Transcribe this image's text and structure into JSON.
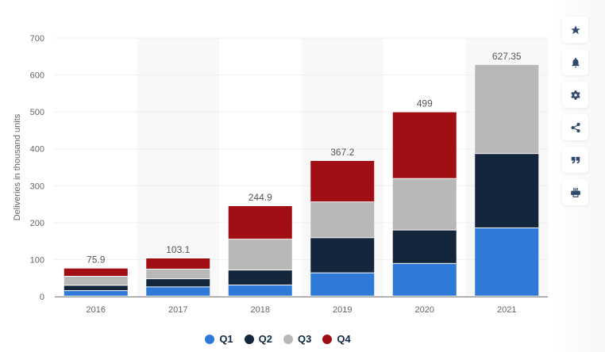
{
  "chart_data": {
    "type": "bar",
    "stacked": true,
    "title": "",
    "xlabel": "",
    "ylabel": "Deliveries in thousand units",
    "ylim": [
      0,
      700
    ],
    "yticks": [
      0,
      100,
      200,
      300,
      400,
      500,
      600,
      700
    ],
    "grid": true,
    "legend_position": "bottom-center",
    "categories": [
      "2016",
      "2017",
      "2018",
      "2019",
      "2020",
      "2021"
    ],
    "series": [
      {
        "name": "Q1",
        "color": "#2f7ad9",
        "values": [
          14.82,
          25.0,
          29.98,
          63.0,
          88.4,
          184.8
        ]
      },
      {
        "name": "Q2",
        "color": "#14263c",
        "values": [
          14.37,
          22.0,
          40.74,
          95.2,
          90.65,
          201.25
        ]
      },
      {
        "name": "Q3",
        "color": "#b8b8b8",
        "values": [
          24.5,
          26.15,
          83.5,
          97.0,
          139.3,
          241.3
        ]
      },
      {
        "name": "Q4",
        "color": "#a10f15",
        "values": [
          22.2,
          29.95,
          90.7,
          112.0,
          180.65,
          0
        ]
      }
    ],
    "totals": [
      "75.9",
      "103.1",
      "244.9",
      "367.2",
      "499",
      "627.35"
    ]
  },
  "sidebar": {
    "buttons": [
      {
        "name": "star-icon",
        "label": "Favorite"
      },
      {
        "name": "bell-icon",
        "label": "Notify"
      },
      {
        "name": "gear-icon",
        "label": "Settings"
      },
      {
        "name": "share-icon",
        "label": "Share"
      },
      {
        "name": "quote-icon",
        "label": "Cite"
      },
      {
        "name": "print-icon",
        "label": "Print"
      }
    ]
  }
}
